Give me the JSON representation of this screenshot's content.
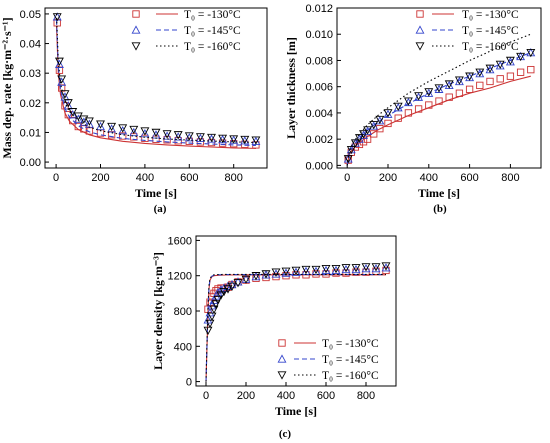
{
  "chart_data": [
    {
      "type": "line",
      "subfigure_label": "(a)",
      "xlabel": "Time [s]",
      "ylabel": "Mass dep. rate [kg·m⁻²·s⁻¹]",
      "xlim": [
        -50,
        950
      ],
      "ylim": [
        -0.002,
        0.052
      ],
      "xticks": [
        0,
        200,
        400,
        600,
        800
      ],
      "yticks": [
        0.0,
        0.01,
        0.02,
        0.03,
        0.04,
        0.05
      ],
      "ytick_labels": [
        "0.00",
        "0.01",
        "0.02",
        "0.03",
        "0.04",
        "0.05"
      ],
      "legend_position": "top-right",
      "series": [
        {
          "name": "T₀ = -130°C",
          "color": "#cc3333",
          "line": "solid",
          "marker": "square",
          "line_x": [
            2,
            10,
            20,
            40,
            60,
            100,
            150,
            200,
            300,
            400,
            500,
            600,
            700,
            800,
            900
          ],
          "line_y": [
            0.046,
            0.03,
            0.0228,
            0.0165,
            0.0138,
            0.011,
            0.0092,
            0.0082,
            0.007,
            0.0063,
            0.0058,
            0.0054,
            0.0051,
            0.0048,
            0.0046
          ],
          "marker_x": [
            5,
            15,
            25,
            40,
            55,
            75,
            100,
            125,
            150,
            200,
            250,
            300,
            350,
            400,
            450,
            500,
            550,
            600,
            650,
            700,
            750,
            800,
            850,
            900
          ],
          "marker_y": [
            0.047,
            0.031,
            0.025,
            0.019,
            0.016,
            0.014,
            0.012,
            0.0112,
            0.0105,
            0.0098,
            0.0092,
            0.0088,
            0.0085,
            0.008,
            0.0077,
            0.0075,
            0.0072,
            0.007,
            0.0068,
            0.0066,
            0.0064,
            0.0062,
            0.006,
            0.0058
          ]
        },
        {
          "name": "T₀ = -145°C",
          "color": "#3344cc",
          "line": "dashed",
          "marker": "triangle-up",
          "line_x": [
            2,
            10,
            20,
            40,
            60,
            100,
            150,
            200,
            300,
            400,
            500,
            600,
            700,
            800,
            900
          ],
          "line_y": [
            0.048,
            0.032,
            0.0245,
            0.018,
            0.0152,
            0.0122,
            0.0102,
            0.0092,
            0.008,
            0.0073,
            0.0068,
            0.0064,
            0.0061,
            0.0058,
            0.0056
          ],
          "marker_x": [
            5,
            15,
            25,
            40,
            55,
            75,
            100,
            125,
            150,
            200,
            250,
            300,
            350,
            400,
            450,
            500,
            550,
            600,
            650,
            700,
            750,
            800,
            850,
            900
          ],
          "marker_y": [
            0.049,
            0.033,
            0.027,
            0.022,
            0.019,
            0.016,
            0.0145,
            0.0135,
            0.0128,
            0.012,
            0.0112,
            0.0106,
            0.01,
            0.0096,
            0.0092,
            0.0088,
            0.0085,
            0.0082,
            0.008,
            0.0078,
            0.0076,
            0.0074,
            0.0072,
            0.007
          ]
        },
        {
          "name": "T₀ = -160°C",
          "color": "#000000",
          "line": "dotted",
          "marker": "triangle-down",
          "line_x": [
            2,
            10,
            20,
            40,
            60,
            100,
            150,
            200,
            300,
            400,
            500,
            600,
            700,
            800,
            900
          ],
          "line_y": [
            0.05,
            0.034,
            0.0265,
            0.02,
            0.017,
            0.014,
            0.0118,
            0.0106,
            0.0092,
            0.0084,
            0.0078,
            0.0074,
            0.0071,
            0.0068,
            0.0066
          ],
          "marker_x": [
            5,
            15,
            25,
            40,
            55,
            75,
            100,
            125,
            150,
            200,
            250,
            300,
            350,
            400,
            450,
            500,
            550,
            600,
            650,
            700,
            750,
            800,
            850,
            900
          ],
          "marker_y": [
            0.049,
            0.034,
            0.028,
            0.023,
            0.02,
            0.017,
            0.0155,
            0.0145,
            0.0138,
            0.0128,
            0.012,
            0.0115,
            0.011,
            0.0105,
            0.01,
            0.0095,
            0.0092,
            0.0088,
            0.0085,
            0.0083,
            0.008,
            0.0078,
            0.0076,
            0.0074
          ]
        }
      ]
    },
    {
      "type": "line",
      "subfigure_label": "(b)",
      "xlabel": "Time [s]",
      "ylabel": "Layer thickness [m]",
      "xlim": [
        -50,
        950
      ],
      "ylim": [
        -0.0002,
        0.012
      ],
      "xticks": [
        0,
        200,
        400,
        600,
        800
      ],
      "yticks": [
        0.0,
        0.002,
        0.004,
        0.006,
        0.008,
        0.01,
        0.012
      ],
      "ytick_labels": [
        "0.000",
        "0.002",
        "0.004",
        "0.006",
        "0.008",
        "0.010",
        "0.012"
      ],
      "legend_position": "top-right",
      "series": [
        {
          "name": "T₀ = -130°C",
          "color": "#cc3333",
          "line": "solid",
          "marker": "square",
          "line_x": [
            0,
            10,
            25,
            50,
            100,
            150,
            200,
            300,
            400,
            500,
            600,
            700,
            800,
            900
          ],
          "line_y": [
            0,
            0.0008,
            0.0012,
            0.0016,
            0.0022,
            0.0027,
            0.0031,
            0.0038,
            0.0044,
            0.005,
            0.0055,
            0.0059,
            0.0064,
            0.0068
          ],
          "marker_x": [
            5,
            20,
            40,
            60,
            80,
            100,
            130,
            160,
            200,
            250,
            300,
            350,
            400,
            450,
            500,
            550,
            600,
            650,
            700,
            750,
            800,
            850,
            900
          ],
          "marker_y": [
            0.0004,
            0.001,
            0.0014,
            0.0016,
            0.0018,
            0.002,
            0.0024,
            0.0028,
            0.0032,
            0.0036,
            0.004,
            0.0043,
            0.0046,
            0.0049,
            0.0052,
            0.0055,
            0.0058,
            0.0061,
            0.0064,
            0.0066,
            0.0068,
            0.0071,
            0.0073
          ]
        },
        {
          "name": "T₀ = -145°C",
          "color": "#3344cc",
          "line": "dashed",
          "marker": "triangle-up",
          "line_x": [
            0,
            10,
            25,
            50,
            100,
            150,
            200,
            300,
            400,
            500,
            600,
            700,
            800,
            900
          ],
          "line_y": [
            0,
            0.0009,
            0.0014,
            0.0019,
            0.0027,
            0.0033,
            0.0038,
            0.0047,
            0.0055,
            0.0062,
            0.0068,
            0.0074,
            0.008,
            0.0086
          ],
          "marker_x": [
            5,
            20,
            40,
            60,
            80,
            100,
            130,
            160,
            200,
            250,
            300,
            350,
            400,
            450,
            500,
            550,
            600,
            650,
            700,
            750,
            800,
            850,
            900
          ],
          "marker_y": [
            0.0005,
            0.0012,
            0.0017,
            0.002,
            0.0023,
            0.0026,
            0.003,
            0.0034,
            0.0039,
            0.0044,
            0.0048,
            0.0052,
            0.0055,
            0.0058,
            0.0061,
            0.0064,
            0.0067,
            0.007,
            0.0073,
            0.0076,
            0.0079,
            0.0083,
            0.0086
          ]
        },
        {
          "name": "T₀ = -160°C",
          "color": "#000000",
          "line": "dotted",
          "marker": "triangle-down",
          "line_x": [
            0,
            10,
            25,
            50,
            100,
            150,
            200,
            300,
            400,
            500,
            600,
            700,
            800,
            900
          ],
          "line_y": [
            0,
            0.001,
            0.0016,
            0.0022,
            0.0031,
            0.0038,
            0.0044,
            0.0055,
            0.0064,
            0.0072,
            0.008,
            0.0087,
            0.0094,
            0.01
          ],
          "marker_x": [
            5,
            20,
            40,
            60,
            80,
            100,
            130,
            160,
            200,
            250,
            300,
            350,
            400,
            450,
            500,
            550,
            600,
            650,
            700,
            750,
            800,
            850,
            900
          ],
          "marker_y": [
            0.0005,
            0.0012,
            0.0017,
            0.0021,
            0.0024,
            0.0027,
            0.0031,
            0.0035,
            0.004,
            0.0045,
            0.0049,
            0.0053,
            0.0056,
            0.0059,
            0.0062,
            0.0065,
            0.0068,
            0.0071,
            0.0074,
            0.0077,
            0.008,
            0.0083,
            0.0086
          ]
        }
      ]
    },
    {
      "type": "line",
      "subfigure_label": "(c)",
      "xlabel": "Time [s]",
      "ylabel": "Layer density [kg·m⁻³]",
      "xlim": [
        -50,
        950
      ],
      "ylim": [
        -50,
        1650
      ],
      "xticks": [
        0,
        200,
        400,
        600,
        800
      ],
      "yticks": [
        0,
        400,
        800,
        1200,
        1600
      ],
      "ytick_labels": [
        "0",
        "400",
        "800",
        "1200",
        "1600"
      ],
      "legend_position": "lower-right",
      "series": [
        {
          "name": "T₀ = -130°C",
          "color": "#cc3333",
          "line": "solid",
          "marker": "square",
          "line_x": [
            0,
            5,
            10,
            15,
            20,
            30,
            40,
            60,
            100,
            200,
            400,
            600,
            800,
            900
          ],
          "line_y": [
            0,
            400,
            800,
            1050,
            1150,
            1190,
            1200,
            1205,
            1208,
            1210,
            1210,
            1210,
            1210,
            1210
          ],
          "marker_x": [
            10,
            20,
            30,
            40,
            50,
            60,
            75,
            90,
            110,
            130,
            160,
            200,
            250,
            300,
            350,
            400,
            450,
            500,
            550,
            600,
            650,
            700,
            750,
            800,
            850,
            900
          ],
          "marker_y": [
            820,
            900,
            960,
            1000,
            1030,
            1050,
            1060,
            1060,
            1070,
            1100,
            1130,
            1150,
            1170,
            1180,
            1190,
            1200,
            1210,
            1210,
            1220,
            1220,
            1230,
            1230,
            1240,
            1240,
            1250,
            1260
          ]
        },
        {
          "name": "T₀ = -145°C",
          "color": "#3344cc",
          "line": "dashed",
          "marker": "triangle-up",
          "line_x": [
            0,
            5,
            10,
            15,
            20,
            30,
            40,
            60,
            100,
            200,
            400,
            600,
            800,
            900
          ],
          "line_y": [
            0,
            420,
            820,
            1070,
            1160,
            1195,
            1205,
            1210,
            1212,
            1212,
            1212,
            1212,
            1212,
            1212
          ],
          "marker_x": [
            10,
            20,
            30,
            40,
            50,
            60,
            75,
            90,
            110,
            130,
            160,
            200,
            250,
            300,
            350,
            400,
            450,
            500,
            550,
            600,
            650,
            700,
            750,
            800,
            850,
            900
          ],
          "marker_y": [
            700,
            780,
            860,
            920,
            970,
            1010,
            1040,
            1060,
            1080,
            1100,
            1130,
            1160,
            1190,
            1210,
            1220,
            1230,
            1240,
            1250,
            1250,
            1260,
            1260,
            1270,
            1270,
            1280,
            1280,
            1290
          ]
        },
        {
          "name": "T₀ = -160°C",
          "color": "#000000",
          "line": "dotted",
          "marker": "triangle-down",
          "line_x": [
            0,
            5,
            10,
            15,
            20,
            30,
            40,
            60,
            100,
            200,
            400,
            600,
            800,
            900
          ],
          "line_y": [
            0,
            450,
            850,
            1090,
            1170,
            1200,
            1210,
            1213,
            1215,
            1215,
            1215,
            1215,
            1215,
            1215
          ],
          "marker_x": [
            10,
            20,
            30,
            40,
            50,
            60,
            75,
            90,
            110,
            130,
            160,
            200,
            250,
            300,
            350,
            400,
            450,
            500,
            550,
            600,
            650,
            700,
            750,
            800,
            850,
            900
          ],
          "marker_y": [
            580,
            660,
            740,
            820,
            880,
            930,
            980,
            1020,
            1050,
            1080,
            1120,
            1160,
            1200,
            1220,
            1240,
            1250,
            1260,
            1270,
            1270,
            1280,
            1280,
            1290,
            1290,
            1300,
            1300,
            1310
          ]
        }
      ]
    }
  ]
}
